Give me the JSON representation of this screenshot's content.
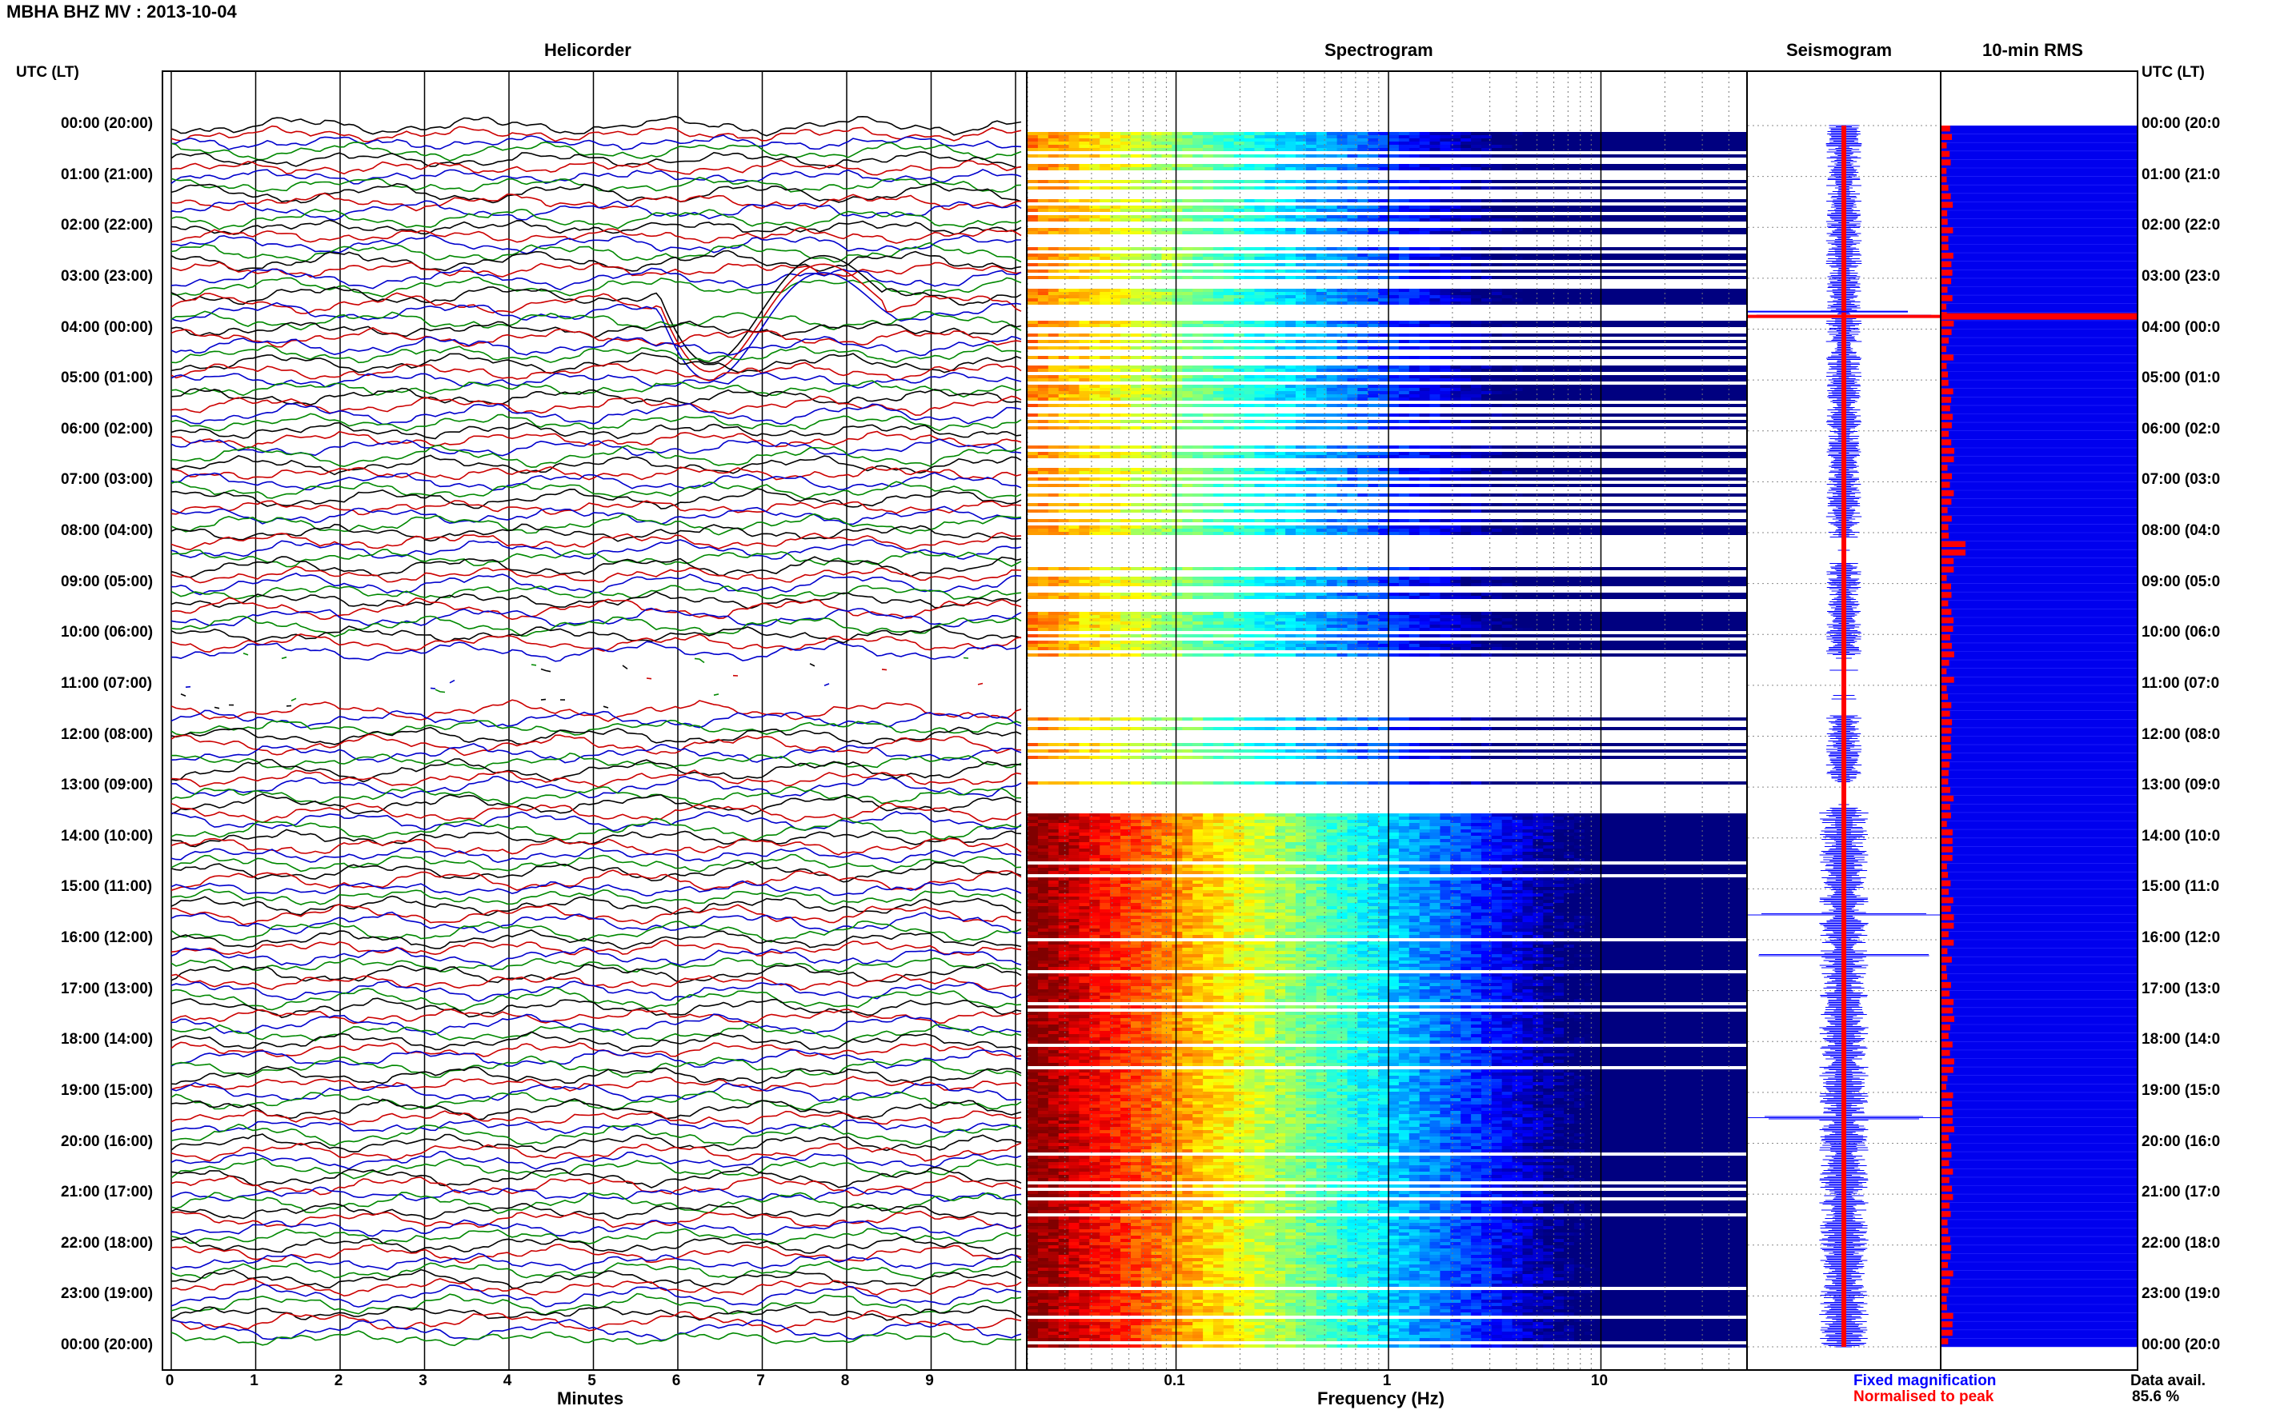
{
  "title": "MBHA BHZ MV : 2013-10-04",
  "panels": {
    "helicorder": "Helicorder",
    "spectrogram": "Spectrogram",
    "seismogram": "Seismogram",
    "rms": "10-min RMS"
  },
  "utc_lt_label": "UTC (LT)",
  "time_labels": [
    "00:00 (20:00)",
    "01:00 (21:00)",
    "02:00 (22:00)",
    "03:00 (23:00)",
    "04:00 (00:00)",
    "05:00 (01:00)",
    "06:00 (02:00)",
    "07:00 (03:00)",
    "08:00 (04:00)",
    "09:00 (05:00)",
    "10:00 (06:00)",
    "11:00 (07:00)",
    "12:00 (08:00)",
    "13:00 (09:00)",
    "14:00 (10:00)",
    "15:00 (11:00)",
    "16:00 (12:00)",
    "17:00 (13:00)",
    "18:00 (14:00)",
    "19:00 (15:00)",
    "20:00 (16:00)",
    "21:00 (17:00)",
    "22:00 (18:00)",
    "23:00 (19:00)",
    "00:00 (20:00)"
  ],
  "right_time_labels": [
    "00:00 (20:0",
    "01:00 (21:0",
    "02:00 (22:0",
    "03:00 (23:0",
    "04:00 (00:0",
    "05:00 (01:0",
    "06:00 (02:0",
    "07:00 (03:0",
    "08:00 (04:0",
    "09:00 (05:0",
    "10:00 (06:0",
    "11:00 (07:0",
    "12:00 (08:0",
    "13:00 (09:0",
    "14:00 (10:0",
    "15:00 (11:0",
    "16:00 (12:0",
    "17:00 (13:0",
    "18:00 (14:0",
    "19:00 (15:0",
    "20:00 (16:0",
    "21:00 (17:0",
    "22:00 (18:0",
    "23:00 (19:0",
    "00:00 (20:0"
  ],
  "chart_data": [
    {
      "type": "line",
      "title": "Helicorder",
      "xlabel": "Minutes",
      "x_ticks": [
        "0",
        "1",
        "2",
        "3",
        "4",
        "5",
        "6",
        "7",
        "8",
        "9"
      ],
      "xlim": [
        0,
        10
      ],
      "ylabel": "UTC (LT)",
      "line_interval_minutes": 10,
      "line_colors": [
        "#000000",
        "#cc0000",
        "#0000cc",
        "#008800"
      ],
      "gap_hours": [
        10.5,
        11.5
      ],
      "events": [
        {
          "hour": 3.5,
          "minute": 6.0,
          "note": "large amplitude event"
        }
      ]
    },
    {
      "type": "heatmap",
      "title": "Spectrogram",
      "xlabel": "Frequency (Hz)",
      "x_scale": "log",
      "x_ticks": [
        "0.1",
        "1",
        "10"
      ],
      "xlim": [
        0.02,
        50
      ],
      "colormap": "jet",
      "power_profile": "high at low frequency, decreasing toward high frequency",
      "gap_hours": [
        [
          8.1,
          8.6
        ],
        [
          10.4,
          11.6
        ],
        [
          12.9,
          13.4
        ]
      ]
    },
    {
      "type": "line",
      "title": "Seismogram",
      "legend": [
        {
          "label": "Fixed magnification",
          "color": "#0000ff"
        },
        {
          "label": "Normalised to peak",
          "color": "#ff0000"
        }
      ],
      "spike_hours": [
        3.75,
        8.4,
        11.4,
        15.5,
        16.3,
        19.5
      ]
    },
    {
      "type": "bar",
      "title": "10-min RMS",
      "orientation": "horizontal",
      "background_color": "#0000ee",
      "bar_color": "#ff0000",
      "peak_hour": 3.75,
      "footer_label": "Data avail.",
      "data_availability": "85.6 %"
    }
  ]
}
